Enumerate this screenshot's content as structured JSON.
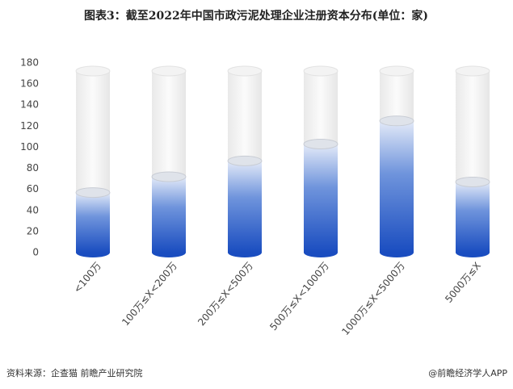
{
  "chart_data": {
    "type": "bar",
    "title": "图表3：截至2022年中国市政污泥处理企业注册资本分布(单位：家)",
    "categories": [
      "<100万",
      "100万≤X<200万",
      "200万≤X<500万",
      "500万≤X<1000万",
      "1000万≤X<5000万",
      "5000万≤X"
    ],
    "values": [
      57,
      72,
      87,
      103,
      125,
      67
    ],
    "color": "#1f55c8",
    "ylim": [
      0,
      180
    ],
    "yticks": [
      0,
      20,
      40,
      60,
      80,
      100,
      120,
      140,
      160,
      180
    ],
    "grid": false,
    "source": "资料来源：企查猫 前瞻产业研究院",
    "watermark": "@前瞻经济学人APP"
  }
}
